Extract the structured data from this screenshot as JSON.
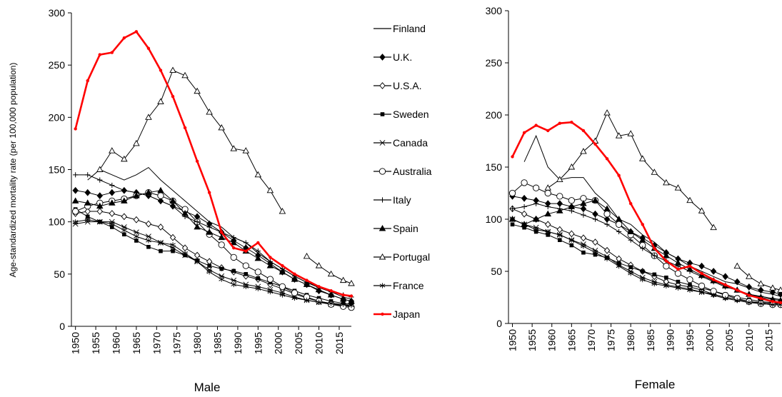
{
  "chart_data": [
    {
      "type": "line",
      "xlabel": "Male",
      "ylabel": "Age-standardized mortality rate (per 100,000 population)",
      "xlim": [
        1949,
        2018
      ],
      "xticks": [
        1950,
        1955,
        1960,
        1965,
        1970,
        1975,
        1980,
        1985,
        1990,
        1995,
        2000,
        2005,
        2010,
        2015
      ],
      "ylim": [
        0,
        300
      ],
      "yticks": [
        0,
        50,
        100,
        150,
        200,
        250,
        300
      ],
      "legend": "right",
      "x": [
        1950,
        1953,
        1956,
        1959,
        1962,
        1965,
        1968,
        1971,
        1974,
        1977,
        1980,
        1983,
        1986,
        1989,
        1992,
        1995,
        1998,
        2001,
        2004,
        2007,
        2010,
        2013,
        2016,
        2018
      ],
      "series": [
        {
          "name": "Finland",
          "color": "#000000",
          "marker": "none",
          "values": [
            null,
            140,
            150,
            145,
            140,
            145,
            152,
            140,
            130,
            120,
            110,
            100,
            95,
            85,
            80,
            70,
            62,
            55,
            48,
            42,
            38,
            33,
            28,
            26
          ]
        },
        {
          "name": "U.K.",
          "color": "#000000",
          "marker": "diamond-filled",
          "values": [
            130,
            128,
            125,
            128,
            130,
            128,
            125,
            120,
            115,
            110,
            105,
            98,
            90,
            82,
            75,
            68,
            60,
            52,
            45,
            40,
            34,
            30,
            26,
            24
          ]
        },
        {
          "name": "U.S.A.",
          "color": "#000000",
          "marker": "diamond-open",
          "values": [
            108,
            110,
            110,
            108,
            105,
            102,
            98,
            95,
            85,
            75,
            68,
            62,
            56,
            52,
            48,
            45,
            40,
            36,
            31,
            27,
            24,
            22,
            20,
            19
          ]
        },
        {
          "name": "Sweden",
          "color": "#000000",
          "marker": "square-filled",
          "values": [
            112,
            105,
            100,
            95,
            88,
            82,
            76,
            72,
            72,
            68,
            63,
            58,
            55,
            53,
            50,
            46,
            42,
            38,
            34,
            30,
            27,
            24,
            22,
            21
          ]
        },
        {
          "name": "Canada",
          "color": "#000000",
          "marker": "asterisk",
          "values": [
            98,
            100,
            100,
            100,
            95,
            90,
            86,
            80,
            75,
            68,
            62,
            54,
            48,
            44,
            40,
            38,
            35,
            32,
            28,
            25,
            23,
            21,
            20,
            20
          ]
        },
        {
          "name": "Australia",
          "color": "#000000",
          "marker": "circle-open",
          "values": [
            110,
            115,
            118,
            120,
            122,
            125,
            128,
            125,
            120,
            112,
            100,
            88,
            78,
            66,
            58,
            52,
            45,
            38,
            32,
            28,
            24,
            21,
            19,
            18
          ]
        },
        {
          "name": "Italy",
          "color": "#000000",
          "marker": "plus",
          "values": [
            145,
            145,
            140,
            135,
            130,
            128,
            125,
            120,
            115,
            105,
            100,
            95,
            90,
            85,
            80,
            72,
            62,
            55,
            48,
            42,
            37,
            33,
            30,
            28
          ]
        },
        {
          "name": "Spain",
          "color": "#000000",
          "marker": "triangle-filled",
          "values": [
            120,
            118,
            115,
            118,
            120,
            125,
            128,
            130,
            120,
            108,
            95,
            90,
            85,
            80,
            72,
            65,
            58,
            52,
            45,
            40,
            35,
            30,
            26,
            24
          ]
        },
        {
          "name": "Portugal",
          "color": "#000000",
          "marker": "triangle-open",
          "values": [
            null,
            null,
            150,
            168,
            160,
            175,
            200,
            215,
            245,
            240,
            225,
            205,
            190,
            170,
            168,
            145,
            130,
            110,
            null,
            67,
            58,
            50,
            44,
            41
          ]
        },
        {
          "name": "France",
          "color": "#000000",
          "marker": "cross",
          "values": [
            100,
            102,
            100,
            98,
            92,
            86,
            82,
            80,
            78,
            70,
            62,
            52,
            45,
            40,
            38,
            36,
            33,
            30,
            27,
            25,
            23,
            22,
            21,
            20
          ]
        },
        {
          "name": "Japan",
          "color": "#ff0000",
          "marker": "dot",
          "values": [
            189,
            235,
            260,
            262,
            276,
            282,
            266,
            245,
            220,
            190,
            158,
            128,
            90,
            75,
            72,
            80,
            66,
            58,
            50,
            44,
            38,
            34,
            30,
            29
          ]
        }
      ]
    },
    {
      "type": "line",
      "xlabel": "Female",
      "xlim": [
        1949,
        2018
      ],
      "xticks": [
        1950,
        1955,
        1960,
        1965,
        1970,
        1975,
        1980,
        1985,
        1990,
        1995,
        2000,
        2005,
        2010,
        2015
      ],
      "ylim": [
        0,
        300
      ],
      "yticks": [
        0,
        50,
        100,
        150,
        200,
        250,
        300
      ],
      "x": [
        1950,
        1953,
        1956,
        1959,
        1962,
        1965,
        1968,
        1971,
        1974,
        1977,
        1980,
        1983,
        1986,
        1989,
        1992,
        1995,
        1998,
        2001,
        2004,
        2007,
        2010,
        2013,
        2016,
        2018
      ],
      "series": [
        {
          "color": "#000000",
          "marker": "none",
          "values": [
            null,
            155,
            180,
            150,
            138,
            140,
            140,
            125,
            115,
            100,
            95,
            85,
            78,
            68,
            62,
            55,
            50,
            45,
            40,
            38,
            34,
            30,
            28,
            26
          ]
        },
        {
          "color": "#000000",
          "marker": "diamond-filled",
          "values": [
            122,
            120,
            118,
            115,
            115,
            112,
            110,
            105,
            100,
            95,
            88,
            82,
            75,
            68,
            62,
            58,
            55,
            50,
            45,
            40,
            35,
            32,
            30,
            28
          ]
        },
        {
          "color": "#000000",
          "marker": "diamond-open",
          "values": [
            110,
            105,
            100,
            95,
            90,
            86,
            82,
            78,
            70,
            62,
            56,
            50,
            45,
            40,
            37,
            35,
            32,
            28,
            25,
            23,
            21,
            20,
            19,
            19
          ]
        },
        {
          "color": "#000000",
          "marker": "square-filled",
          "values": [
            95,
            92,
            88,
            85,
            80,
            75,
            68,
            66,
            63,
            58,
            54,
            50,
            47,
            44,
            40,
            37,
            34,
            31,
            28,
            25,
            23,
            21,
            20,
            19
          ]
        },
        {
          "color": "#000000",
          "marker": "asterisk",
          "values": [
            100,
            95,
            92,
            88,
            85,
            80,
            76,
            70,
            64,
            56,
            50,
            44,
            40,
            37,
            35,
            33,
            30,
            28,
            25,
            23,
            21,
            20,
            19,
            19
          ]
        },
        {
          "color": "#000000",
          "marker": "circle-open",
          "values": [
            125,
            135,
            130,
            125,
            122,
            118,
            120,
            118,
            105,
            95,
            85,
            75,
            65,
            55,
            48,
            42,
            36,
            31,
            27,
            24,
            21,
            19,
            18,
            18
          ]
        },
        {
          "color": "#000000",
          "marker": "plus",
          "values": [
            110,
            112,
            115,
            112,
            110,
            108,
            104,
            100,
            95,
            88,
            80,
            72,
            65,
            60,
            55,
            50,
            45,
            40,
            35,
            32,
            28,
            26,
            24,
            23
          ]
        },
        {
          "color": "#000000",
          "marker": "triangle-filled",
          "values": [
            100,
            95,
            100,
            105,
            108,
            112,
            115,
            118,
            110,
            100,
            88,
            80,
            72,
            65,
            58,
            52,
            46,
            41,
            36,
            32,
            28,
            25,
            23,
            22
          ]
        },
        {
          "color": "#000000",
          "marker": "triangle-open",
          "values": [
            null,
            null,
            null,
            130,
            138,
            150,
            165,
            175,
            202,
            180,
            182,
            158,
            145,
            135,
            130,
            118,
            108,
            92,
            null,
            55,
            45,
            38,
            34,
            32
          ]
        },
        {
          "color": "#000000",
          "marker": "cross",
          "values": [
            100,
            95,
            90,
            88,
            85,
            80,
            74,
            68,
            62,
            55,
            48,
            42,
            38,
            36,
            34,
            32,
            30,
            27,
            24,
            22,
            20,
            19,
            18,
            18
          ]
        },
        {
          "color": "#ff0000",
          "marker": "dot",
          "values": [
            160,
            183,
            190,
            185,
            192,
            193,
            185,
            172,
            158,
            142,
            115,
            95,
            72,
            60,
            52,
            55,
            48,
            42,
            37,
            32,
            27,
            24,
            21,
            20
          ]
        }
      ]
    }
  ]
}
